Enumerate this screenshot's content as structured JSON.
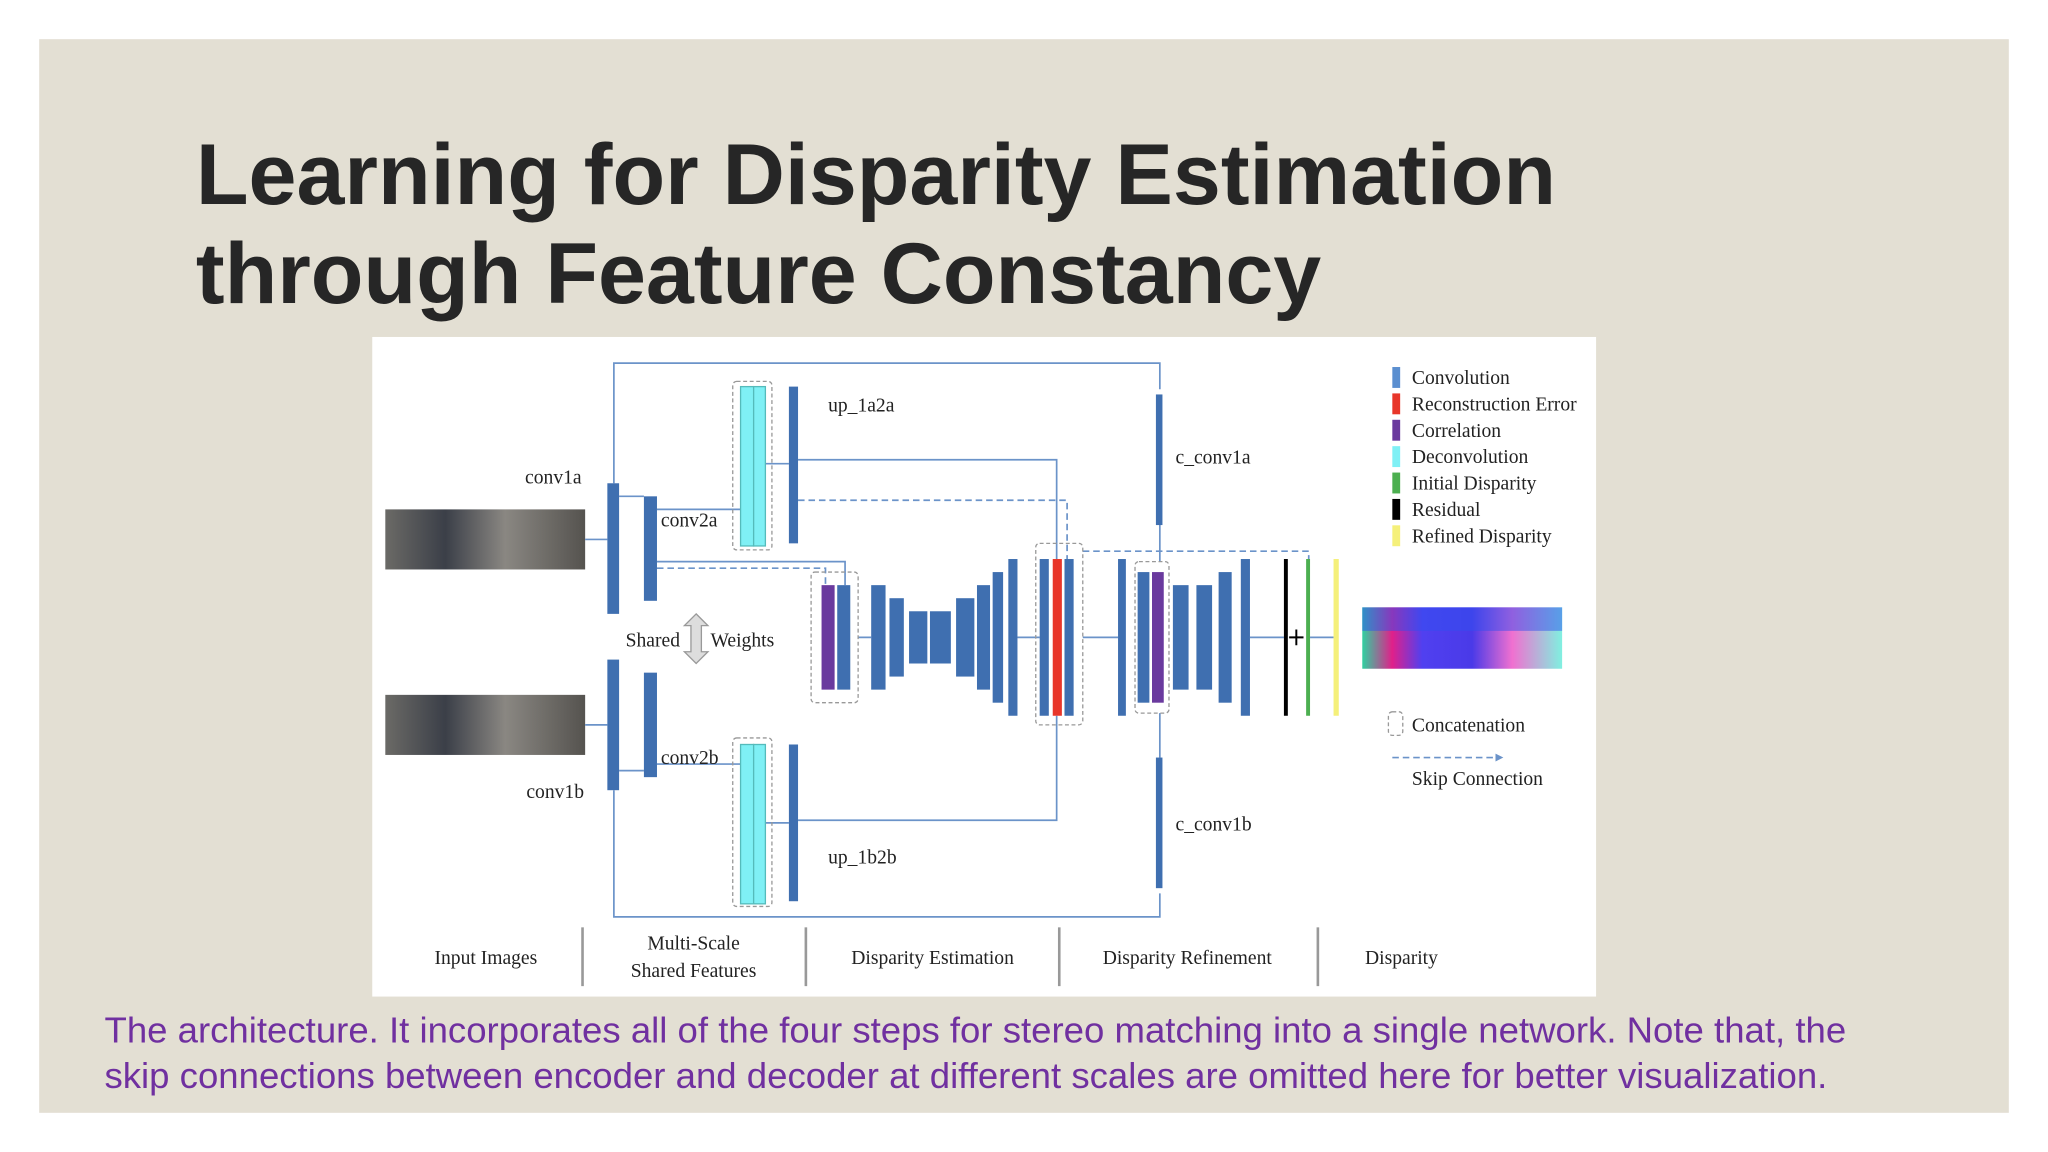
{
  "slide": {
    "title_lines": [
      "Learning for Disparity Estimation",
      "through Feature Constancy"
    ],
    "diagram": {
      "labels": {
        "conv1a": "conv1a",
        "conv2a": "conv2a",
        "conv1b": "conv1b",
        "conv2b": "conv2b",
        "up_1a2a": "up_1a2a",
        "up_1b2b": "up_1b2b",
        "c_conv1a": "c_conv1a",
        "c_conv1b": "c_conv1b",
        "shared": "Shared",
        "weights": "Weights"
      },
      "legend": [
        {
          "label": "Convolution",
          "color": "#5b8fd0"
        },
        {
          "label": "Reconstruction Error",
          "color": "#e8362a"
        },
        {
          "label": "Correlation",
          "color": "#6a3a9e"
        },
        {
          "label": "Deconvolution",
          "color": "#7ff0f5"
        },
        {
          "label": "Initial Disparity",
          "color": "#4caf50"
        },
        {
          "label": "Residual",
          "color": "#000000"
        },
        {
          "label": "Refined Disparity",
          "color": "#f5f07a"
        }
      ],
      "concatenation": "Concatenation",
      "skip_connection": "Skip Connection",
      "stages": [
        {
          "lines": [
            "Input Images"
          ]
        },
        {
          "lines": [
            "Multi-Scale",
            "Shared Features"
          ]
        },
        {
          "lines": [
            "Disparity Estimation"
          ]
        },
        {
          "lines": [
            "Disparity Refinement"
          ]
        },
        {
          "lines": [
            "Disparity"
          ]
        }
      ]
    },
    "caption_lines": [
      "The architecture. It incorporates all of the four steps for stereo matching into a single network. Note that, the",
      "skip connections between encoder and decoder at different scales are omitted here for better visualization."
    ]
  }
}
